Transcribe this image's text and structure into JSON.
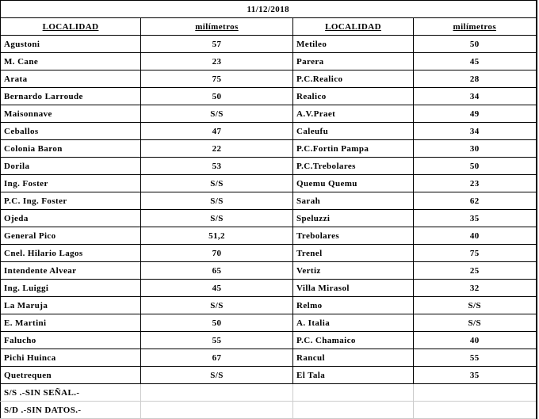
{
  "table": {
    "title": "11/12/2018",
    "headers": [
      "LOCALIDAD",
      "milímetros",
      "LOCALIDAD",
      "milímetros"
    ],
    "rows": [
      [
        "Agustoni",
        "57",
        "Metileo",
        "50"
      ],
      [
        "M. Cane",
        "23",
        "Parera",
        "45"
      ],
      [
        "Arata",
        "75",
        "P.C.Realico",
        "28"
      ],
      [
        "Bernardo Larroude",
        "50",
        "Realico",
        "34"
      ],
      [
        "Maisonnave",
        "S/S",
        "A.V.Praet",
        "49"
      ],
      [
        "Ceballos",
        "47",
        "Caleufu",
        "34"
      ],
      [
        "Colonia Baron",
        "22",
        "P.C.Fortin Pampa",
        "30"
      ],
      [
        "Dorila",
        "53",
        "P.C.Trebolares",
        "50"
      ],
      [
        "Ing. Foster",
        "S/S",
        "Quemu Quemu",
        "23"
      ],
      [
        "P.C. Ing. Foster",
        "S/S",
        "Sarah",
        "62"
      ],
      [
        "Ojeda",
        "S/S",
        "Speluzzi",
        "35"
      ],
      [
        "General Pico",
        "51,2",
        "Trebolares",
        "40"
      ],
      [
        "Cnel. Hilario Lagos",
        "70",
        "Trenel",
        "75"
      ],
      [
        "Intendente Alvear",
        "65",
        "Vertiz",
        "25"
      ],
      [
        "Ing. Luiggi",
        "45",
        "Villa Mirasol",
        "32"
      ],
      [
        "La Maruja",
        "S/S",
        "Relmo",
        "S/S"
      ],
      [
        "E. Martini",
        "50",
        "A. Italia",
        "S/S"
      ],
      [
        "Falucho",
        "55",
        "P.C. Chamaico",
        "40"
      ],
      [
        "Pichi Huinca",
        "67",
        "Rancul",
        "55"
      ],
      [
        "Quetrequen",
        "S/S",
        "El Tala",
        "35"
      ]
    ],
    "notes": [
      "S/S .-SIN SEÑAL.-",
      "S/D .-SIN DATOS.-"
    ]
  }
}
